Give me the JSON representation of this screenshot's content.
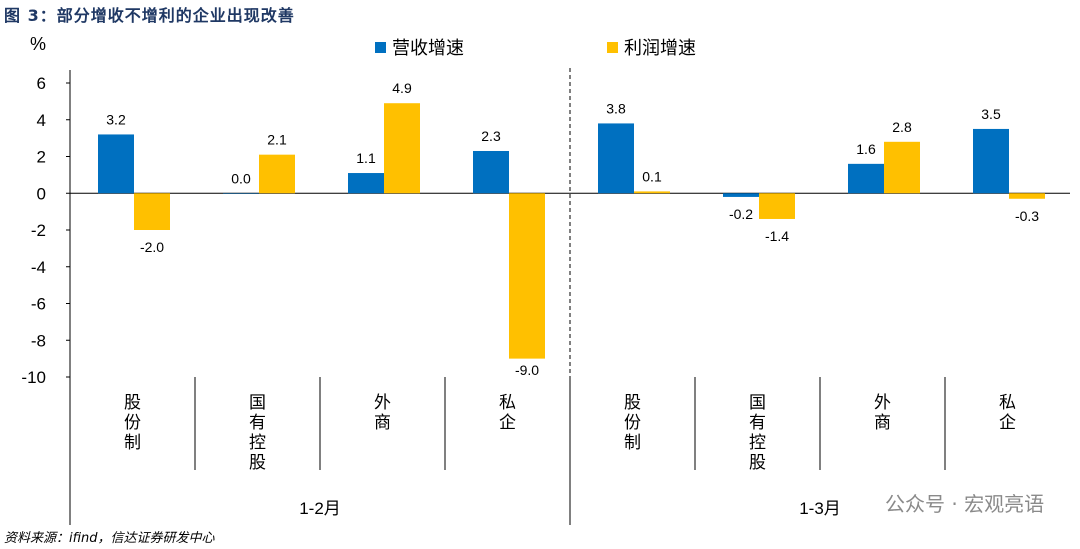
{
  "title": "图 3：部分增收不增利的企业出现改善",
  "source": "资料来源：ifind，信达证券研发中心",
  "watermark": "公众号 · 宏观亮语",
  "chart_data": {
    "type": "bar",
    "ylabel": "%",
    "ylim": [
      -10,
      6
    ],
    "yticks": [
      6,
      4,
      2,
      0,
      -2,
      -4,
      -6,
      -8,
      -10
    ],
    "groups": [
      {
        "label": "1-2月",
        "categories": [
          "股份制",
          "国有控股",
          "外商",
          "私企"
        ]
      },
      {
        "label": "1-3月",
        "categories": [
          "股份制",
          "国有控股",
          "外商",
          "私企"
        ]
      }
    ],
    "categories": [
      "股份制",
      "国有控股",
      "外商",
      "私企",
      "股份制",
      "国有控股",
      "外商",
      "私企"
    ],
    "series": [
      {
        "name": "营收增速",
        "color": "#0070c0",
        "values": [
          3.2,
          0.0,
          1.1,
          2.3,
          3.8,
          -0.2,
          1.6,
          3.5
        ]
      },
      {
        "name": "利润增速",
        "color": "#ffc000",
        "values": [
          -2.0,
          2.1,
          4.9,
          -9.0,
          0.1,
          -1.4,
          2.8,
          -0.3
        ]
      }
    ],
    "grid": false,
    "legend": "top"
  }
}
